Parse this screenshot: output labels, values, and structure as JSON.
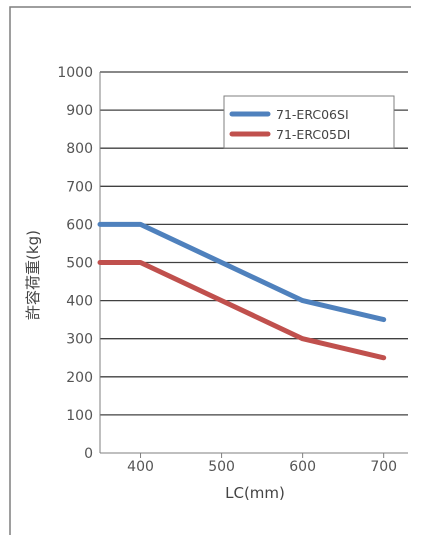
{
  "chart_data": {
    "type": "line",
    "title": "",
    "xlabel": "LC(mm)",
    "ylabel": "許容荷重(kg)",
    "x": [
      350,
      400,
      500,
      600,
      700
    ],
    "xticks": [
      400,
      500,
      600,
      700
    ],
    "xlim": [
      350,
      730
    ],
    "ylim": [
      0,
      1000
    ],
    "yticks": [
      0,
      100,
      200,
      300,
      400,
      500,
      600,
      700,
      800,
      900,
      1000
    ],
    "grid": true,
    "legend_position": "top-right",
    "series": [
      {
        "name": "71-ERC06SI",
        "color": "#4f81bd",
        "values": [
          600,
          600,
          500,
          400,
          350
        ]
      },
      {
        "name": "71-ERC05DI",
        "color": "#c0504d",
        "values": [
          500,
          500,
          400,
          300,
          250
        ]
      }
    ]
  }
}
